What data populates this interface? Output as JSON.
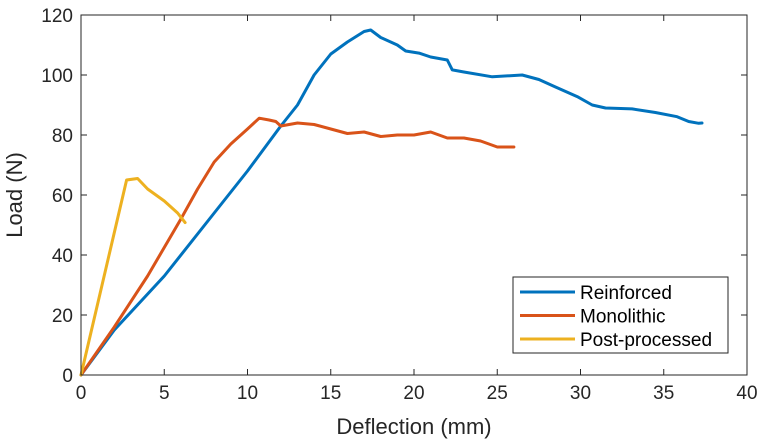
{
  "chart_data": {
    "type": "line",
    "title": "",
    "xlabel": "Deflection (mm)",
    "ylabel": "Load (N)",
    "xlim": [
      0,
      40
    ],
    "ylim": [
      0,
      120
    ],
    "xticks": [
      "0",
      "5",
      "10",
      "15",
      "20",
      "25",
      "30",
      "35",
      "40"
    ],
    "yticks": [
      "0",
      "20",
      "40",
      "60",
      "80",
      "100",
      "120"
    ],
    "grid": false,
    "legend_position": "bottom-right",
    "series": [
      {
        "name": "Reinforced",
        "color": "#0072BD",
        "x": [
          0,
          2,
          5,
          8,
          10,
          12,
          13,
          14,
          15,
          16,
          17,
          17.4,
          18,
          19,
          19.5,
          20.3,
          21,
          22,
          22.3,
          23,
          24.7,
          26.5,
          27.5,
          28.5,
          29.8,
          30.7,
          31.5,
          33.1,
          34.5,
          35.8,
          36.5,
          37.1,
          37.3
        ],
        "y": [
          0,
          15,
          33,
          54,
          68,
          83,
          90,
          100,
          107,
          111,
          114.5,
          115,
          112.5,
          110,
          108,
          107.3,
          106,
          105,
          101.7,
          101,
          99.4,
          100,
          98.5,
          96,
          92.8,
          90,
          89,
          88.7,
          87.5,
          86.1,
          84.5,
          83.9,
          84
        ]
      },
      {
        "name": "Monolithic",
        "color": "#D95319",
        "x": [
          0,
          2,
          4,
          6,
          7,
          8,
          9,
          10,
          10.7,
          11.3,
          11.7,
          12,
          13,
          14,
          15,
          16,
          17,
          18,
          19,
          20,
          21,
          22,
          23,
          24,
          25,
          26
        ],
        "y": [
          0,
          16,
          33,
          52,
          62,
          71,
          77,
          82,
          85.6,
          85,
          84.5,
          83,
          84,
          83.5,
          82,
          80.5,
          81,
          79.5,
          80,
          80,
          81,
          79,
          79,
          78,
          76,
          76
        ]
      },
      {
        "name": "Post-processed",
        "color": "#EDB120",
        "x": [
          0,
          2.74,
          3.4,
          4,
          5,
          5.8,
          6.25
        ],
        "y": [
          0,
          65,
          65.5,
          62,
          58,
          54,
          50.8
        ]
      }
    ]
  }
}
